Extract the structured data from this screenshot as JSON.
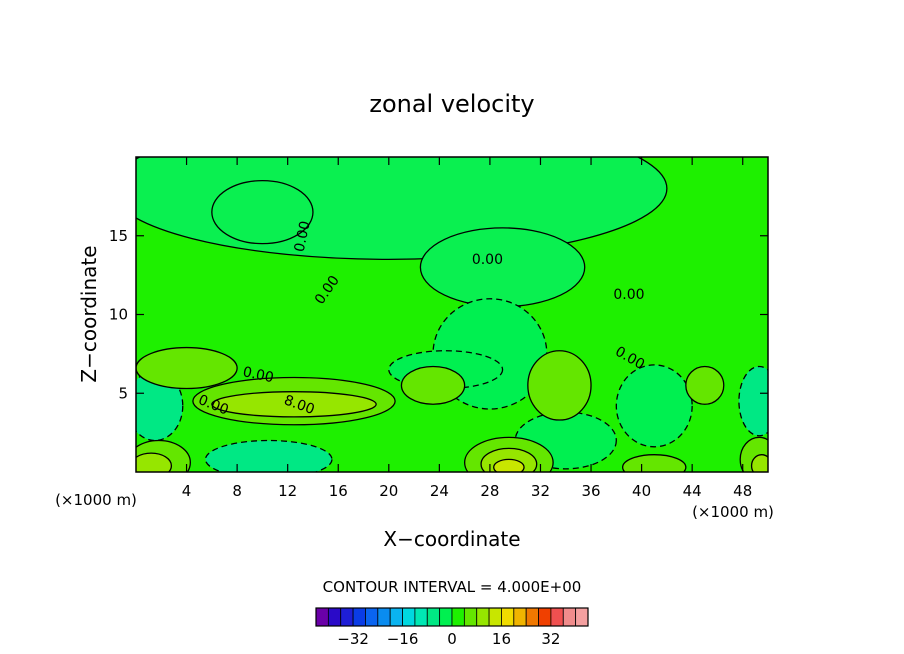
{
  "chart_data": {
    "type": "heatmap",
    "title": "zonal velocity",
    "xlabel": "X−coordinate",
    "ylabel": "Z−coordinate",
    "x_unit_left": "(×1000 m)",
    "x_unit_right": "(×1000 m)",
    "xlim": [
      0,
      50
    ],
    "ylim": [
      0,
      20
    ],
    "x_ticks": [
      4,
      8,
      12,
      16,
      20,
      24,
      28,
      32,
      36,
      40,
      44,
      48
    ],
    "y_ticks": [
      5,
      10,
      15
    ],
    "contour_interval_text": "CONTOUR INTERVAL = 4.000E+00",
    "contour_labels": [
      {
        "text": "0.00",
        "x": 13.5,
        "y": 14.9,
        "angle": -78
      },
      {
        "text": "0.00",
        "x": 27.8,
        "y": 13.2,
        "angle": 0
      },
      {
        "text": "0.00",
        "x": 15.4,
        "y": 11.4,
        "angle": -55
      },
      {
        "text": "0.00",
        "x": 39.0,
        "y": 11.0,
        "angle": 0
      },
      {
        "text": "0.00",
        "x": 38.9,
        "y": 7.0,
        "angle": 30
      },
      {
        "text": "0.00",
        "x": 9.6,
        "y": 5.9,
        "angle": 12
      },
      {
        "text": "0.00",
        "x": 6.0,
        "y": 4.0,
        "angle": 22
      },
      {
        "text": "8.00",
        "x": 12.8,
        "y": 4.0,
        "angle": 20
      }
    ],
    "regions": [
      {
        "level": 0,
        "x": 20,
        "y": 18,
        "rx": 22,
        "ry": 4.5
      },
      {
        "level": 0,
        "x": 29,
        "y": 13,
        "rx": 6.5,
        "ry": 2.5
      },
      {
        "level": 0,
        "x": 10,
        "y": 16.5,
        "rx": 4,
        "ry": 2
      },
      {
        "level": -4,
        "x": 28,
        "y": 7.5,
        "rx": 4.5,
        "ry": 3.5
      },
      {
        "level": -4,
        "x": 41,
        "y": 4.2,
        "rx": 3,
        "ry": 2.6
      },
      {
        "level": -4,
        "x": 34,
        "y": 2,
        "rx": 4,
        "ry": 1.8
      },
      {
        "level": -8,
        "x": 1.5,
        "y": 4.2,
        "rx": 2.2,
        "ry": 2.2
      },
      {
        "level": -8,
        "x": 10.5,
        "y": 0.8,
        "rx": 5,
        "ry": 1.2
      },
      {
        "level": -8,
        "x": 49.3,
        "y": 4.5,
        "rx": 1.6,
        "ry": 2.2
      },
      {
        "level": -4,
        "x": 24.5,
        "y": 6.5,
        "rx": 4.5,
        "ry": 1.2
      },
      {
        "level": 4,
        "x": 4,
        "y": 6.6,
        "rx": 4,
        "ry": 1.3
      },
      {
        "level": 4,
        "x": 12.5,
        "y": 4.5,
        "rx": 8,
        "ry": 1.5
      },
      {
        "level": 4,
        "x": 23.5,
        "y": 5.5,
        "rx": 2.5,
        "ry": 1.2
      },
      {
        "level": 4,
        "x": 33.5,
        "y": 5.5,
        "rx": 2.5,
        "ry": 2.2
      },
      {
        "level": 4,
        "x": 45,
        "y": 5.5,
        "rx": 1.5,
        "ry": 1.2
      },
      {
        "level": 8,
        "x": 12.5,
        "y": 4.3,
        "rx": 6.5,
        "ry": 0.8
      },
      {
        "level": 4,
        "x": 29.5,
        "y": 0.6,
        "rx": 3.5,
        "ry": 1.6
      },
      {
        "level": 8,
        "x": 29.5,
        "y": 0.5,
        "rx": 2.2,
        "ry": 1.0
      },
      {
        "level": 12,
        "x": 29.5,
        "y": 0.3,
        "rx": 1.2,
        "ry": 0.5
      },
      {
        "level": 4,
        "x": 1.8,
        "y": 0.6,
        "rx": 2.5,
        "ry": 1.4
      },
      {
        "level": 8,
        "x": 1.2,
        "y": 0.4,
        "rx": 1.6,
        "ry": 0.8
      },
      {
        "level": 4,
        "x": 41,
        "y": 0.3,
        "rx": 2.5,
        "ry": 0.8
      },
      {
        "level": 4,
        "x": 49.3,
        "y": 0.8,
        "rx": 1.5,
        "ry": 1.4
      },
      {
        "level": 8,
        "x": 49.5,
        "y": 0.4,
        "rx": 0.8,
        "ry": 0.7
      }
    ],
    "colorbar": {
      "ticks": [
        "−32",
        "−16",
        "0",
        "16",
        "32"
      ],
      "tick_values": [
        -32,
        -16,
        0,
        16,
        32
      ],
      "levels": [
        -40,
        -36,
        -32,
        -28,
        -24,
        -20,
        -16,
        -12,
        -8,
        -4,
        0,
        4,
        8,
        12,
        16,
        20,
        24,
        28,
        32,
        36,
        40
      ],
      "colors": [
        "#6a00a8",
        "#2a0ac8",
        "#1e1ed6",
        "#0a3ce6",
        "#0a64f0",
        "#0a8cf0",
        "#0ab4f0",
        "#00d8e0",
        "#00e8b4",
        "#00e884",
        "#00f050",
        "#1ef000",
        "#64e600",
        "#96e600",
        "#c8e600",
        "#f0dc00",
        "#f0b400",
        "#f07800",
        "#f04000",
        "#f05050",
        "#f08c8c",
        "#f4a0a0"
      ]
    },
    "grid": false,
    "legend": "none"
  }
}
